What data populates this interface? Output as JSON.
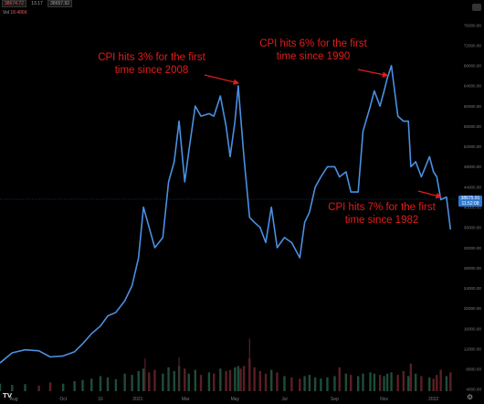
{
  "header": {
    "ohlc": [
      "38674.72",
      "13.17",
      "38657.92"
    ],
    "volume_label": "Vol",
    "volume_value": "18.486K"
  },
  "price_tag": {
    "price": "38675.91",
    "countdown": "11:52:08"
  },
  "colors": {
    "line": "#4a90e2",
    "volume_up": "#1e4d3a",
    "volume_down": "#5a1f24",
    "annotation": "#e11d1d",
    "axis_text": "#7a7a7a"
  },
  "annotations": [
    {
      "text_lines": [
        "CPI hits 3% for the first",
        "time since 2008"
      ],
      "target": [
        "2021-05-05",
        64000
      ]
    },
    {
      "text_lines": [
        "CPI hits 6% for the first",
        "time since 1990"
      ],
      "target": [
        "2021-11-05",
        65500
      ]
    },
    {
      "text_lines": [
        "CPI hits 7% for the first",
        "time since 1982"
      ],
      "target": [
        "2022-01-10",
        41500
      ]
    }
  ],
  "icons": {
    "logo": "tradingview-logo-icon",
    "settings": "gear-icon"
  },
  "chart_data": {
    "type": "line",
    "title": "",
    "xlabel": "",
    "ylabel": "",
    "x_tick_labels": [
      "Aug",
      "Oct",
      "16",
      "2021",
      "Mar",
      "May",
      "Jul",
      "Sep",
      "Nov",
      "2022"
    ],
    "x_tick_dates": [
      "2020-08-01",
      "2020-10-01",
      "2020-11-16",
      "2021-01-01",
      "2021-03-01",
      "2021-05-01",
      "2021-07-01",
      "2021-09-01",
      "2021-11-01",
      "2022-01-01"
    ],
    "y_tick_labels": [
      "76000.00",
      "72000.00",
      "68000.00",
      "64000.00",
      "60000.00",
      "56000.00",
      "52000.00",
      "48000.00",
      "44000.00",
      "40000.00",
      "36000.00",
      "32000.00",
      "28000.00",
      "24000.00",
      "20000.00",
      "16000.00",
      "12000.00",
      "8000.00",
      "4000.00",
      "0.00"
    ],
    "ylim": [
      0,
      77000
    ],
    "x_range": [
      "2020-07-15",
      "2022-01-25"
    ],
    "grid": false,
    "series": [
      {
        "x": [
          "2020-07-15",
          "2020-07-30",
          "2020-08-15",
          "2020-09-01",
          "2020-09-15",
          "2020-10-01",
          "2020-10-15",
          "2020-10-25",
          "2020-11-05",
          "2020-11-16",
          "2020-11-25",
          "2020-12-05",
          "2020-12-16",
          "2020-12-25",
          "2021-01-02",
          "2021-01-08",
          "2021-01-15",
          "2021-01-22",
          "2021-02-01",
          "2021-02-08",
          "2021-02-15",
          "2021-02-21",
          "2021-02-28",
          "2021-03-05",
          "2021-03-13",
          "2021-03-20",
          "2021-03-30",
          "2021-04-05",
          "2021-04-13",
          "2021-04-20",
          "2021-04-25",
          "2021-05-01",
          "2021-05-05",
          "2021-05-08",
          "2021-05-12",
          "2021-05-19",
          "2021-05-25",
          "2021-06-01",
          "2021-06-08",
          "2021-06-15",
          "2021-06-22",
          "2021-07-01",
          "2021-07-10",
          "2021-07-20",
          "2021-07-26",
          "2021-08-01",
          "2021-08-08",
          "2021-08-15",
          "2021-08-23",
          "2021-09-01",
          "2021-09-07",
          "2021-09-15",
          "2021-09-21",
          "2021-09-30",
          "2021-10-06",
          "2021-10-15",
          "2021-10-20",
          "2021-10-27",
          "2021-11-01",
          "2021-11-05",
          "2021-11-10",
          "2021-11-18",
          "2021-11-25",
          "2021-12-01",
          "2021-12-04",
          "2021-12-10",
          "2021-12-17",
          "2021-12-27",
          "2022-01-01",
          "2022-01-05",
          "2022-01-10",
          "2022-01-17",
          "2022-01-22"
        ],
        "y": [
          9200,
          11200,
          11800,
          11600,
          10400,
          10600,
          11400,
          13000,
          15000,
          16500,
          18500,
          19200,
          21500,
          24500,
          30000,
          40000,
          36000,
          32000,
          34000,
          45000,
          49000,
          57000,
          45000,
          51000,
          60000,
          58000,
          58500,
          58000,
          62000,
          56000,
          50000,
          57000,
          64000,
          58000,
          50000,
          38000,
          37000,
          36000,
          33000,
          40000,
          32000,
          34000,
          33000,
          30000,
          37000,
          39000,
          44000,
          46000,
          48000,
          48000,
          46000,
          47000,
          43000,
          43000,
          55000,
          60000,
          63000,
          60000,
          63000,
          65500,
          68000,
          58000,
          57000,
          57000,
          48000,
          49000,
          46000,
          50000,
          47000,
          46000,
          41500,
          42000,
          35600
        ]
      }
    ],
    "volume": [
      0.3,
      0.25,
      0.28,
      0.22,
      0.35,
      0.3,
      0.4,
      0.45,
      0.5,
      0.6,
      0.55,
      0.48,
      0.7,
      0.65,
      0.8,
      0.9,
      0.75,
      0.85,
      0.7,
      0.95,
      0.8,
      1.0,
      0.9,
      0.7,
      0.85,
      0.65,
      0.75,
      0.7,
      0.9,
      0.8,
      0.85,
      0.95,
      1.0,
      0.9,
      1.0,
      1.3,
      0.95,
      0.8,
      0.7,
      0.85,
      0.75,
      0.6,
      0.55,
      0.5,
      0.6,
      0.65,
      0.55,
      0.5,
      0.55,
      0.6,
      0.95,
      0.7,
      0.65,
      0.6,
      0.7,
      0.75,
      0.7,
      0.65,
      0.6,
      0.7,
      0.75,
      0.65,
      0.8,
      0.6,
      1.1,
      0.7,
      0.6,
      0.55,
      0.5,
      0.65,
      0.85,
      0.6,
      0.75
    ],
    "volume_spikes": [
      {
        "x": "2021-05-19",
        "y": 2.1
      },
      {
        "x": "2021-02-21",
        "y": 1.35
      },
      {
        "x": "2021-01-10",
        "y": 1.3
      }
    ]
  }
}
